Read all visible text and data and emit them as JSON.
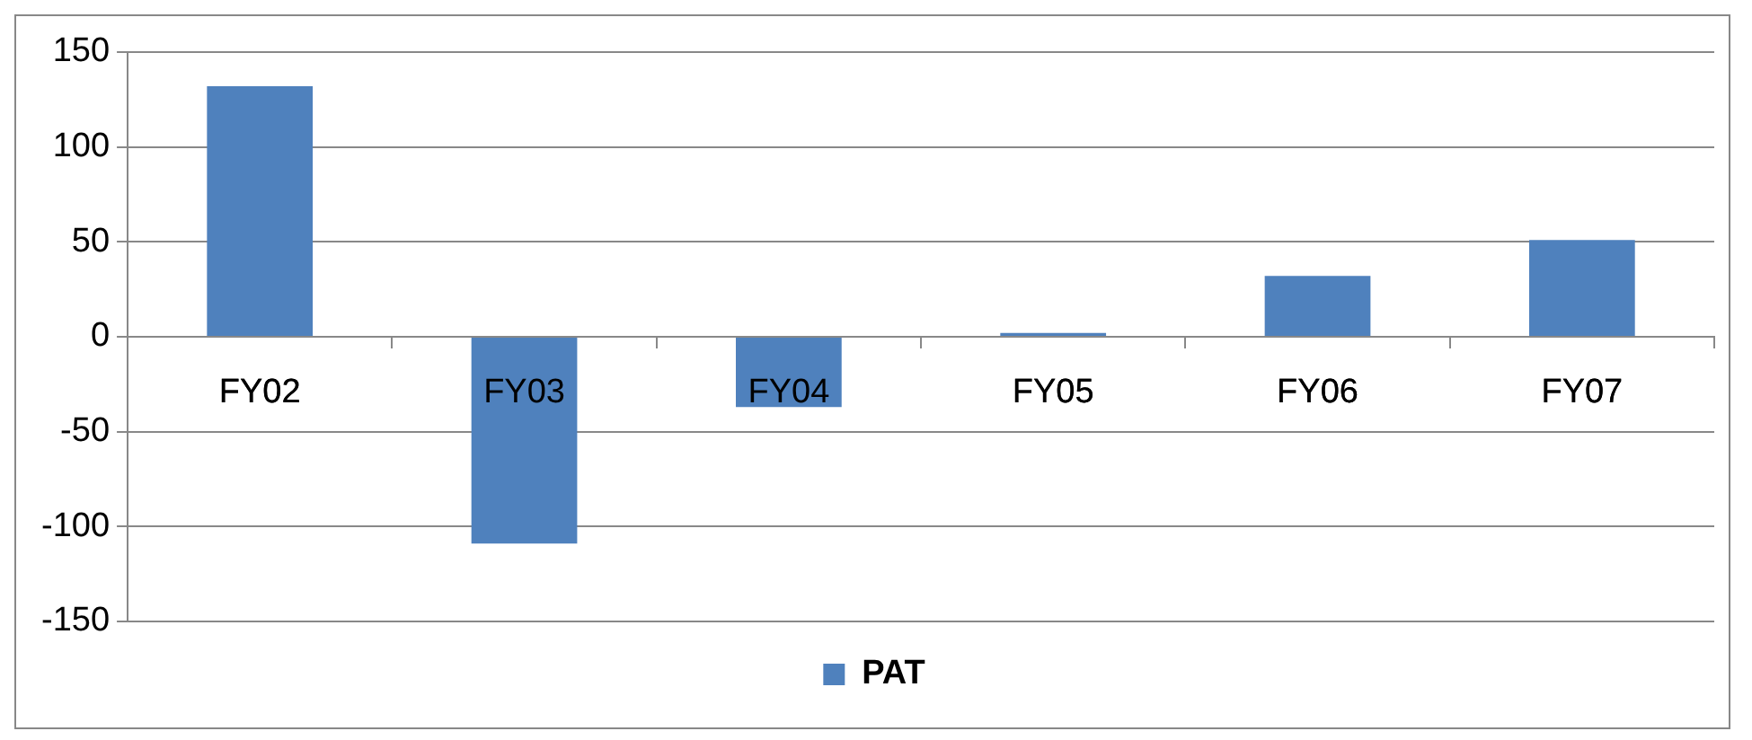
{
  "chart_data": {
    "type": "bar",
    "categories": [
      "FY02",
      "FY03",
      "FY04",
      "FY05",
      "FY06",
      "FY07"
    ],
    "series": [
      {
        "name": "PAT",
        "color": "#4f81bd",
        "values": [
          132,
          -109,
          -37,
          2,
          32,
          51
        ]
      }
    ],
    "ylim": [
      -150,
      150
    ],
    "yticks": [
      -150,
      -100,
      -50,
      0,
      50,
      100,
      150
    ],
    "grid": "y",
    "legend": "bottom"
  }
}
